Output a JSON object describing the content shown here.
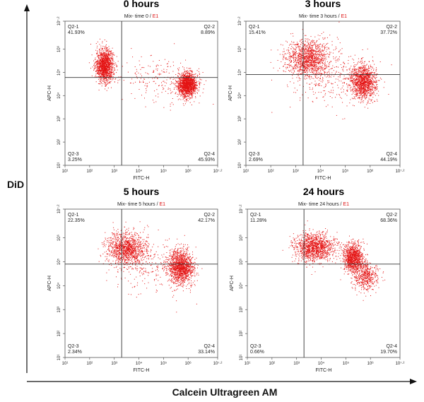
{
  "figure": {
    "y_label": "DiD",
    "x_label": "Calcein Ultragreen AM"
  },
  "chart_data": [
    {
      "type": "scatter",
      "title": "0 hours",
      "subtitle_black": "Mix- time 0 / ",
      "subtitle_red": "E1",
      "xlabel": "FITC-H",
      "ylabel": "APC-H",
      "xscale": "log",
      "yscale": "log",
      "xlim": [
        10,
        15848932
      ],
      "ylim": [
        10,
        15848932
      ],
      "x_ticks": [
        "10¹",
        "10²",
        "10³",
        "10⁴",
        "10⁵",
        "10⁶",
        "10⁷·²"
      ],
      "y_ticks": [
        "10¹",
        "10²",
        "10³",
        "10⁴",
        "10⁵",
        "10⁶",
        "10⁷·²"
      ],
      "gate": {
        "x": 2000,
        "y": 60000
      },
      "quadrants": [
        {
          "name": "Q2-1",
          "percent": "41.93%"
        },
        {
          "name": "Q2-2",
          "percent": "8.89%"
        },
        {
          "name": "Q2-3",
          "percent": "3.25%"
        },
        {
          "name": "Q2-4",
          "percent": "45.93%"
        }
      ],
      "point_color": "#e41414",
      "clusters": [
        {
          "x": 400,
          "y": 200000,
          "count": 1400,
          "spread_x": 0.18,
          "spread_y": 0.35
        },
        {
          "x": 900000,
          "y": 30000,
          "count": 1500,
          "spread_x": 0.2,
          "spread_y": 0.25
        },
        {
          "x": 60000,
          "y": 60000,
          "count": 200,
          "spread_x": 0.8,
          "spread_y": 0.5
        }
      ]
    },
    {
      "type": "scatter",
      "title": "3 hours",
      "subtitle_black": "Mix- time 3 hours / ",
      "subtitle_red": "E1",
      "xlabel": "FITC-H",
      "ylabel": "APC-H",
      "xscale": "log",
      "yscale": "log",
      "xlim": [
        10,
        15848932
      ],
      "ylim": [
        10,
        15848932
      ],
      "x_ticks": [
        "10¹",
        "10²",
        "10³",
        "10⁴",
        "10⁵",
        "10⁶",
        "10⁷·²"
      ],
      "y_ticks": [
        "10¹",
        "10²",
        "10³",
        "10⁴",
        "10⁵",
        "10⁶",
        "10⁷·²"
      ],
      "gate": {
        "x": 2000,
        "y": 80000
      },
      "quadrants": [
        {
          "name": "Q2-1",
          "percent": "15.41%"
        },
        {
          "name": "Q2-2",
          "percent": "37.72%"
        },
        {
          "name": "Q2-3",
          "percent": "2.69%"
        },
        {
          "name": "Q2-4",
          "percent": "44.19%"
        }
      ],
      "point_color": "#e41414",
      "clusters": [
        {
          "x": 3000,
          "y": 400000,
          "count": 1300,
          "spread_x": 0.45,
          "spread_y": 0.4
        },
        {
          "x": 500000,
          "y": 40000,
          "count": 1300,
          "spread_x": 0.25,
          "spread_y": 0.35
        },
        {
          "x": 40000,
          "y": 60000,
          "count": 300,
          "spread_x": 0.8,
          "spread_y": 0.6
        }
      ]
    },
    {
      "type": "scatter",
      "title": "5 hours",
      "subtitle_black": "Mix- time 5 hours / ",
      "subtitle_red": "E1",
      "xlabel": "FITC-H",
      "ylabel": "APC-H",
      "xscale": "log",
      "yscale": "log",
      "xlim": [
        10,
        15848932
      ],
      "ylim": [
        10,
        15848932
      ],
      "x_ticks": [
        "10¹",
        "10²",
        "10³",
        "10⁴",
        "10⁵",
        "10⁶",
        "10⁷·²"
      ],
      "y_ticks": [
        "10¹",
        "10²",
        "10³",
        "10⁴",
        "10⁵",
        "10⁶",
        "10⁷·²"
      ],
      "gate": {
        "x": 2000,
        "y": 80000
      },
      "quadrants": [
        {
          "name": "Q2-1",
          "percent": "22.35%"
        },
        {
          "name": "Q2-2",
          "percent": "42.17%"
        },
        {
          "name": "Q2-3",
          "percent": "2.34%"
        },
        {
          "name": "Q2-4",
          "percent": "33.14%"
        }
      ],
      "point_color": "#e41414",
      "clusters": [
        {
          "x": 3000,
          "y": 350000,
          "count": 1200,
          "spread_x": 0.4,
          "spread_y": 0.35
        },
        {
          "x": 500000,
          "y": 60000,
          "count": 1400,
          "spread_x": 0.25,
          "spread_y": 0.35
        },
        {
          "x": 40000,
          "y": 80000,
          "count": 250,
          "spread_x": 0.8,
          "spread_y": 0.6
        }
      ]
    },
    {
      "type": "scatter",
      "title": "24 hours",
      "subtitle_black": "Mix- time 24 hours / ",
      "subtitle_red": "E1",
      "xlabel": "FITC-H",
      "ylabel": "APC-H",
      "xscale": "log",
      "yscale": "log",
      "xlim": [
        10,
        15848932
      ],
      "ylim": [
        10,
        15848932
      ],
      "x_ticks": [
        "10¹",
        "10²",
        "10³",
        "10⁴",
        "10⁵",
        "10⁶",
        "10⁷·²"
      ],
      "y_ticks": [
        "10¹",
        "10²",
        "10³",
        "10⁴",
        "10⁵",
        "10⁶",
        "10⁷·²"
      ],
      "gate": {
        "x": 2000,
        "y": 80000
      },
      "quadrants": [
        {
          "name": "Q2-1",
          "percent": "11.28%"
        },
        {
          "name": "Q2-2",
          "percent": "68.36%"
        },
        {
          "name": "Q2-3",
          "percent": "0.66%"
        },
        {
          "name": "Q2-4",
          "percent": "19.70%"
        }
      ],
      "point_color": "#e41414",
      "clusters": [
        {
          "x": 5000,
          "y": 400000,
          "count": 1300,
          "spread_x": 0.4,
          "spread_y": 0.3
        },
        {
          "x": 200000,
          "y": 150000,
          "count": 1100,
          "spread_x": 0.2,
          "spread_y": 0.3
        },
        {
          "x": 600000,
          "y": 25000,
          "count": 500,
          "spread_x": 0.25,
          "spread_y": 0.3
        }
      ]
    }
  ]
}
